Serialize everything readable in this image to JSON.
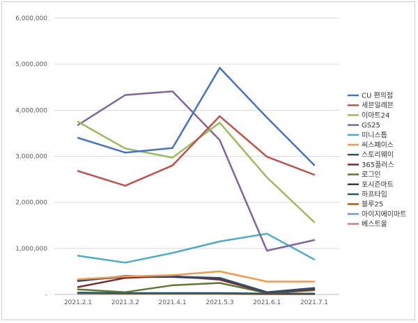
{
  "chart_data": {
    "type": "line",
    "title": "",
    "xlabel": "",
    "ylabel": "",
    "ylim": [
      0,
      6000000
    ],
    "y_ticks": [
      {
        "value": 0,
        "label": "-"
      },
      {
        "value": 1000000,
        "label": "1,000,000"
      },
      {
        "value": 2000000,
        "label": "2,000,000"
      },
      {
        "value": 3000000,
        "label": "3,000,000"
      },
      {
        "value": 4000000,
        "label": "4,000,000"
      },
      {
        "value": 5000000,
        "label": "5,000,000"
      },
      {
        "value": 6000000,
        "label": "6,000,000"
      }
    ],
    "categories": [
      "2021.2.1",
      "2021.3.2",
      "2021.4.1",
      "2021.5.3",
      "2021.6.1",
      "2021.7.1"
    ],
    "grid": true,
    "legend": "right",
    "series": [
      {
        "name": "CU 편의점",
        "color": "#4472C4",
        "values": [
          3400000,
          3080000,
          3180000,
          4920000,
          3840000,
          2810000
        ]
      },
      {
        "name": "세븐일레븐",
        "color": "#C0504D",
        "values": [
          2680000,
          2360000,
          2800000,
          3870000,
          2990000,
          2600000
        ]
      },
      {
        "name": "이마트24",
        "color": "#9BBB59",
        "values": [
          3750000,
          3170000,
          2970000,
          3730000,
          2540000,
          1570000
        ]
      },
      {
        "name": "GS25",
        "color": "#8064A2",
        "values": [
          3680000,
          4330000,
          4410000,
          3350000,
          950000,
          1180000
        ]
      },
      {
        "name": "미니스톱",
        "color": "#4BACC6",
        "values": [
          840000,
          690000,
          900000,
          1150000,
          1320000,
          760000
        ]
      },
      {
        "name": "씨스페이스",
        "color": "#F79646",
        "values": [
          330000,
          390000,
          420000,
          500000,
          280000,
          280000
        ]
      },
      {
        "name": "스토리웨이",
        "color": "#2C4D75",
        "values": [
          290000,
          400000,
          390000,
          360000,
          50000,
          140000
        ]
      },
      {
        "name": "365플러스",
        "color": "#772C2A",
        "values": [
          160000,
          360000,
          400000,
          320000,
          40000,
          110000
        ]
      },
      {
        "name": "로그인",
        "color": "#5F7530",
        "values": [
          110000,
          50000,
          200000,
          250000,
          30000,
          90000
        ]
      },
      {
        "name": "포시즌마트",
        "color": "#403152",
        "values": [
          310000,
          380000,
          380000,
          340000,
          40000,
          120000
        ]
      },
      {
        "name": "하프타임",
        "color": "#215968",
        "values": [
          40000,
          30000,
          30000,
          30000,
          20000,
          20000
        ]
      },
      {
        "name": "블루25",
        "color": "#B65708",
        "values": [
          30000,
          20000,
          20000,
          20000,
          10000,
          10000
        ]
      },
      {
        "name": "아이지에이마트",
        "color": "#729ACA",
        "values": [
          20000,
          10000,
          10000,
          10000,
          10000,
          10000
        ]
      },
      {
        "name": "베스트올",
        "color": "#D9787A",
        "values": [
          10000,
          10000,
          10000,
          10000,
          5000,
          5000
        ]
      }
    ]
  }
}
